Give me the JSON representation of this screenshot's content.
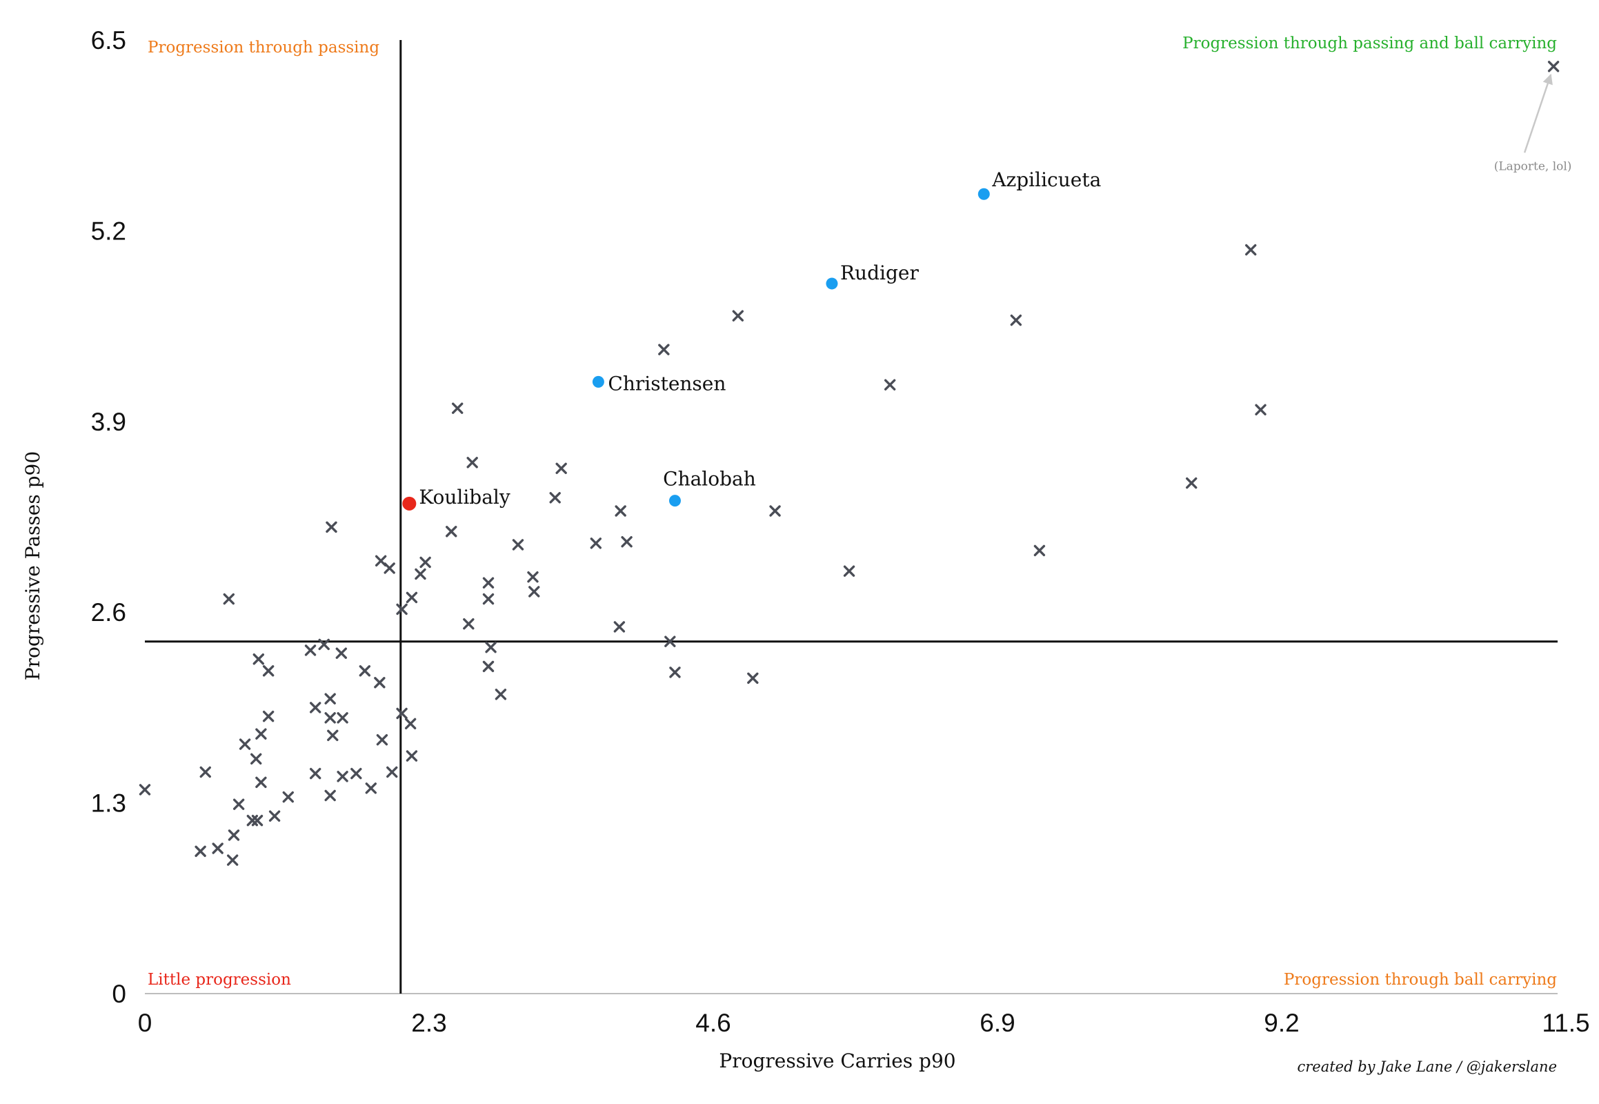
{
  "colors": {
    "quadrant_orange": "#ee7a1a",
    "quadrant_green": "#27b02d",
    "quadrant_red": "#e8271b",
    "player_blue": "#1a9ef0",
    "player_red": "#e8271b",
    "cross": "#4a4d56",
    "annotation_gray": "#8a8a8a"
  },
  "chart_data": {
    "type": "scatter",
    "xlabel": "Progressive Carries p90",
    "ylabel": "Progressive Passes p90",
    "xlim": [
      0,
      11.5
    ],
    "ylim": [
      0,
      6.5
    ],
    "x_ticks": [
      "0",
      "2.3",
      "4.6",
      "6.9",
      "9.2",
      "11.5"
    ],
    "y_ticks": [
      "0",
      "1.3",
      "2.6",
      "3.9",
      "5.2",
      "6.5"
    ],
    "grid": false,
    "reference_lines": {
      "x": 2.07,
      "y": 2.4
    },
    "quadrant_labels": [
      {
        "text": "Progression through passing",
        "position": "top-left",
        "color": "orange"
      },
      {
        "text": "Progression through passing and ball carrying",
        "position": "top-right",
        "color": "green"
      },
      {
        "text": "Little progression",
        "position": "bottom-left",
        "color": "red"
      },
      {
        "text": "Progression through ball carrying",
        "position": "bottom-right",
        "color": "orange"
      }
    ],
    "highlighted": [
      {
        "name": "Koulibaly",
        "x": 2.14,
        "y": 3.34,
        "color": "red"
      },
      {
        "name": "Christensen",
        "x": 3.67,
        "y": 4.17,
        "color": "blue"
      },
      {
        "name": "Chalobah",
        "x": 4.29,
        "y": 3.36,
        "color": "blue"
      },
      {
        "name": "Rudiger",
        "x": 5.56,
        "y": 4.84,
        "color": "blue"
      },
      {
        "name": "Azpilicueta",
        "x": 6.79,
        "y": 5.45,
        "color": "blue"
      }
    ],
    "others": [
      [
        11.4,
        6.32
      ],
      [
        8.95,
        5.07
      ],
      [
        9.03,
        3.98
      ],
      [
        8.47,
        3.48
      ],
      [
        7.24,
        3.02
      ],
      [
        7.05,
        4.59
      ],
      [
        6.03,
        4.15
      ],
      [
        5.7,
        2.88
      ],
      [
        5.1,
        3.29
      ],
      [
        4.92,
        2.15
      ],
      [
        4.8,
        4.62
      ],
      [
        4.2,
        4.39
      ],
      [
        4.25,
        2.4
      ],
      [
        4.29,
        2.19
      ],
      [
        3.9,
        3.08
      ],
      [
        3.85,
        3.29
      ],
      [
        3.84,
        2.5
      ],
      [
        3.65,
        3.07
      ],
      [
        3.37,
        3.58
      ],
      [
        3.32,
        3.38
      ],
      [
        3.15,
        2.74
      ],
      [
        3.14,
        2.84
      ],
      [
        3.02,
        3.06
      ],
      [
        2.88,
        2.04
      ],
      [
        2.8,
        2.36
      ],
      [
        2.78,
        2.8
      ],
      [
        2.78,
        2.69
      ],
      [
        2.78,
        2.23
      ],
      [
        2.65,
        3.62
      ],
      [
        2.62,
        2.52
      ],
      [
        2.53,
        3.99
      ],
      [
        2.48,
        3.15
      ],
      [
        2.27,
        2.94
      ],
      [
        2.23,
        2.86
      ],
      [
        2.16,
        1.62
      ],
      [
        2.15,
        1.84
      ],
      [
        2.16,
        2.7
      ],
      [
        2.08,
        1.91
      ],
      [
        2.08,
        2.62
      ],
      [
        2.0,
        1.51
      ],
      [
        1.98,
        2.9
      ],
      [
        1.91,
        2.95
      ],
      [
        1.92,
        1.73
      ],
      [
        1.9,
        2.12
      ],
      [
        1.78,
        2.2
      ],
      [
        1.83,
        1.4
      ],
      [
        1.71,
        1.5
      ],
      [
        1.6,
        1.88
      ],
      [
        1.59,
        2.32
      ],
      [
        1.6,
        1.48
      ],
      [
        1.52,
        1.76
      ],
      [
        1.5,
        1.88
      ],
      [
        1.5,
        2.01
      ],
      [
        1.5,
        1.35
      ],
      [
        1.45,
        2.38
      ],
      [
        1.34,
        2.34
      ],
      [
        1.38,
        1.95
      ],
      [
        1.38,
        1.5
      ],
      [
        1.51,
        3.18
      ],
      [
        1.16,
        1.34
      ],
      [
        1.05,
        1.21
      ],
      [
        1.0,
        2.2
      ],
      [
        1.0,
        1.89
      ],
      [
        0.94,
        1.44
      ],
      [
        0.94,
        1.77
      ],
      [
        0.92,
        2.28
      ],
      [
        0.91,
        1.18
      ],
      [
        0.9,
        1.6
      ],
      [
        0.87,
        1.18
      ],
      [
        0.81,
        1.7
      ],
      [
        0.76,
        1.29
      ],
      [
        0.72,
        1.08
      ],
      [
        0.71,
        0.91
      ],
      [
        0.68,
        2.69
      ],
      [
        0.59,
        0.99
      ],
      [
        0.49,
        1.51
      ],
      [
        0.45,
        0.97
      ],
      [
        0.0,
        1.39
      ]
    ],
    "annotations": [
      {
        "text": "(Laporte, lol)",
        "points_to": [
          11.4,
          6.32
        ]
      }
    ],
    "credit": "created by Jake Lane / @jakerslane"
  }
}
